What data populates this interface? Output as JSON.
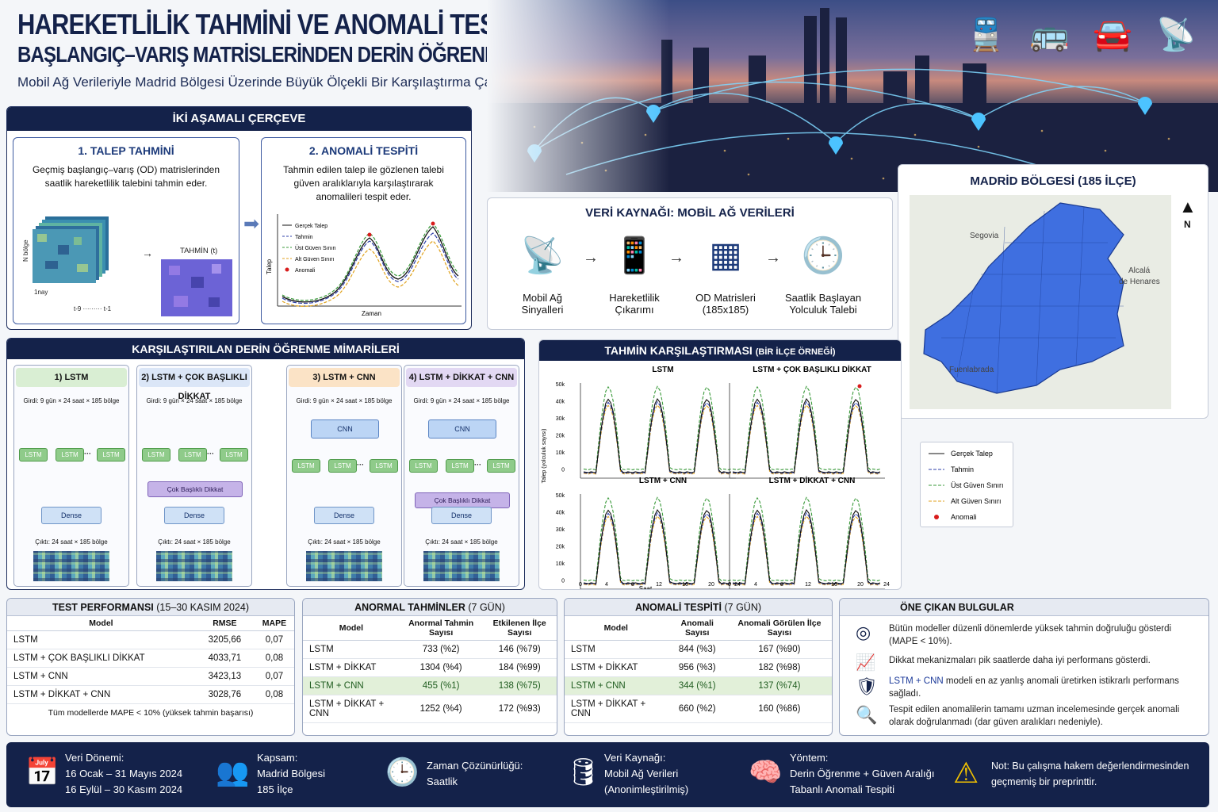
{
  "header": {
    "title": "HAREKETLİLİK TAHMİNİ VE ANOMALİ TESPİTİ",
    "subtitle": "BAŞLANGIÇ–VARIŞ MATRİSLERİNDEN DERİN ÖĞRENME İLE ÇÖZÜM",
    "tagline": "Mobil Ağ Verileriyle Madrid Bölgesi Üzerinde Büyük Ölçekli Bir Karşılaştırma Çalışması",
    "icons": [
      "train-icon",
      "bus-icon",
      "car-icon",
      "antenna-icon"
    ]
  },
  "framework": {
    "title": "İKİ AŞAMALI ÇERÇEVE",
    "step1": {
      "title": "1. TALEP TAHMİNİ",
      "desc": "Geçmiş başlangıç–varış (OD) matrislerinden saatlik hareketlilik talebini tahmin eder.",
      "ylabel": "N bölge",
      "xlabel": "t-9 ········· t-1",
      "pred_label": "TAHMİN (t)",
      "depth_label": "1nay"
    },
    "step2": {
      "title": "2. ANOMALİ TESPİTİ",
      "desc": "Tahmin edilen talep ile gözlenen talebi güven aralıklarıyla karşılaştırarak anomalileri tespit eder.",
      "ylabel": "Talep",
      "xlabel": "Zaman",
      "legend": [
        "Gerçek Talep",
        "Tahmin",
        "Üst Güven Sınırı",
        "Alt Güven Sınırı",
        "Anomali"
      ]
    }
  },
  "source": {
    "title": "VERİ KAYNAĞI: MOBİL AĞ VERİLERİ",
    "steps": [
      {
        "l1": "Mobil Ağ",
        "l2": "Sinyalleri"
      },
      {
        "l1": "Hareketlilik",
        "l2": "Çıkarımı"
      },
      {
        "l1": "OD Matrisleri",
        "l2": "(185x185)"
      },
      {
        "l1": "Saatlik Başlayan",
        "l2": "Yolculuk Talebi"
      }
    ]
  },
  "map": {
    "title": "MADRİD BÖLGESİ (185 İLÇE)",
    "north": "N",
    "cities": [
      "Segovia",
      "Alcalá",
      "de Henares",
      "Fuenlabrada"
    ]
  },
  "architectures": {
    "title": "KARŞILAŞTIRILAN DERİN ÖĞRENME MİMARİLERİ",
    "input": "Girdi: 9 gün × 24 saat × 185 bölge",
    "output": "Çıktı: 24 saat × 185 bölge",
    "items": [
      {
        "title": "1) LSTM",
        "color": "#d9eed3"
      },
      {
        "title": "2) LSTM + ÇOK BAŞLIKLI DİKKAT",
        "color": "#dbe6f7"
      },
      {
        "title": "3) LSTM + CNN",
        "color": "#fbe3c6"
      },
      {
        "title": "4) LSTM + DİKKAT + CNN",
        "color": "#e2d8f3"
      }
    ],
    "labels": {
      "lstm": "LSTM",
      "dense": "Dense",
      "cnn": "CNN",
      "attention": "Çok Başlıklı Dikkat",
      "dots": "···"
    }
  },
  "comparison": {
    "title": "TAHMİN KARŞILAŞTIRMASI",
    "title_sub": "(BİR İLÇE ÖRNEĞİ)",
    "panels": [
      "LSTM",
      "LSTM + ÇOK BAŞLIKLI DİKKAT",
      "LSTM + CNN",
      "LSTM + DİKKAT + CNN"
    ],
    "ylabel": "Talep (yolculuk sayısı)",
    "xlabel": "Saat",
    "yticks": [
      "50k",
      "40k",
      "30k",
      "20k",
      "10k",
      "0"
    ],
    "xticks": [
      "0",
      "4",
      "8",
      "12",
      "16",
      "20",
      "24"
    ],
    "legend": [
      "Gerçek Talep",
      "Tahmin",
      "Üst Güven Sınırı",
      "Alt Güven Sınırı",
      "Anomali"
    ]
  },
  "colors": {
    "navy": "#14224a",
    "real": "#111111",
    "pred": "#2e3fa8",
    "upper": "#3a9a3a",
    "lower": "#e0a21c",
    "anomaly": "#d81c1c",
    "map_fill": "#3f6fe0"
  },
  "test": {
    "title": "TEST PERFORMANSI",
    "title_sub": "(15–30 KASIM 2024)",
    "headers": [
      "Model",
      "RMSE",
      "MAPE"
    ],
    "rows": [
      [
        "LSTM",
        "3205,66",
        "0,07"
      ],
      [
        "LSTM + ÇOK BAŞLIKLI DİKKAT",
        "4033,71",
        "0,08"
      ],
      [
        "LSTM + CNN",
        "3423,13",
        "0,07"
      ],
      [
        "LSTM + DİKKAT + CNN",
        "3028,76",
        "0,08"
      ]
    ],
    "note": "Tüm modellerde MAPE < 10% (yüksek tahmin başarısı)"
  },
  "abnormal": {
    "title": "ANORMAL TAHMİNLER",
    "title_sub": "(7 GÜN)",
    "headers": [
      "Model",
      "Anormal Tahmin Sayısı",
      "Etkilenen İlçe Sayısı"
    ],
    "rows": [
      [
        "LSTM",
        "733 (%2)",
        "146 (%79)"
      ],
      [
        "LSTM + DİKKAT",
        "1304 (%4)",
        "184 (%99)"
      ],
      [
        "LSTM + CNN",
        "455 (%1)",
        "138 (%75)"
      ],
      [
        "LSTM + DİKKAT + CNN",
        "1252 (%4)",
        "172 (%93)"
      ]
    ]
  },
  "detection": {
    "title": "ANOMALİ TESPİTİ",
    "title_sub": "(7 GÜN)",
    "headers": [
      "Model",
      "Anomali Sayısı",
      "Anomali Görülen İlçe Sayısı"
    ],
    "rows": [
      [
        "LSTM",
        "844 (%3)",
        "167 (%90)"
      ],
      [
        "LSTM + DİKKAT",
        "956 (%3)",
        "182 (%98)"
      ],
      [
        "LSTM + CNN",
        "344 (%1)",
        "137 (%74)"
      ],
      [
        "LSTM + DİKKAT + CNN",
        "660 (%2)",
        "160 (%86)"
      ]
    ]
  },
  "findings": {
    "title": "ÖNE ÇIKAN BULGULAR",
    "items": [
      {
        "text": "Bütün modeller düzenli dönemlerde yüksek tahmin doğruluğu gösterdi (MAPE < 10%)."
      },
      {
        "text": "Dikkat mekanizmaları pik saatlerde daha iyi performans gösterdi."
      },
      {
        "hl": "LSTM + CNN",
        "text": " modeli en az yanlış anomali üretirken istikrarlı performans sağladı."
      },
      {
        "text": "Tespit edilen anomalilerin tamamı uzman incelemesinde gerçek anomali olarak doğrulanmadı (dar güven aralıkları nedeniyle)."
      }
    ]
  },
  "footer": {
    "period": {
      "title": "Veri Dönemi:",
      "l1": "16 Ocak – 31 Mayıs 2024",
      "l2": "16 Eylül – 30 Kasım 2024"
    },
    "scope": {
      "title": "Kapsam:",
      "l1": "Madrid Bölgesi",
      "l2": "185 İlçe"
    },
    "resolution": {
      "title": "Zaman Çözünürlüğü:",
      "l1": "Saatlik"
    },
    "data": {
      "title": "Veri Kaynağı:",
      "l1": "Mobil Ağ Verileri",
      "l2": "(Anonimleştirilmiş)"
    },
    "method": {
      "title": "Yöntem:",
      "l1": "Derin Öğrenme + Güven Aralığı",
      "l2": "Tabanlı Anomali Tespiti"
    },
    "note": {
      "title": "Not:",
      "text": " Bu çalışma hakem değerlendirmesinden geçmemiş bir preprinttir."
    }
  }
}
